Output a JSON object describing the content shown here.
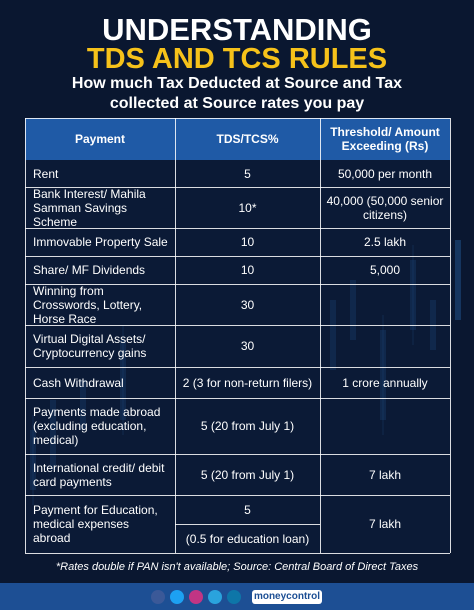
{
  "header": {
    "title": "UNDERSTANDING",
    "title_highlight": "TDS AND TCS RULES",
    "subtitle": "How much Tax Deducted at Source and Tax collected at Source rates you pay"
  },
  "table": {
    "columns": [
      "Payment",
      "TDS/TCS%",
      "Threshold/ Amount Exceeding (Rs)"
    ],
    "rows": [
      {
        "payment": "Rent",
        "rate": [
          "5"
        ],
        "threshold": "50,000 per month"
      },
      {
        "payment": "Bank Interest/ Mahila Samman Savings Scheme",
        "rate": [
          "10*"
        ],
        "threshold": "40,000 (50,000 senior citizens)"
      },
      {
        "payment": "Immovable Property Sale",
        "rate": [
          "10"
        ],
        "threshold": "2.5 lakh"
      },
      {
        "payment": "Share/ MF Dividends",
        "rate": [
          "10"
        ],
        "threshold": "5,000"
      },
      {
        "payment": "Winning from Crosswords, Lottery, Horse Race",
        "rate": [
          "30"
        ]
      },
      {
        "payment": "Virtual Digital Assets/ Cryptocurrency gains",
        "rate": [
          "30"
        ]
      },
      {
        "payment": "Cash Withdrawal",
        "rate": [
          "2 (3 for non-return filers)"
        ],
        "threshold": "1 crore annually"
      },
      {
        "payment": "Payments made abroad (excluding education, medical)",
        "rate": [
          "5 (20 from July 1)"
        ]
      },
      {
        "payment": "International credit/ debit card payments",
        "rate": [
          "5 (20 from July 1)"
        ],
        "threshold": "7 lakh"
      },
      {
        "payment": "Payment for Education, medical expenses abroad",
        "rate": [
          "5",
          "(0.5 for education loan)"
        ],
        "threshold": "7 lakh"
      }
    ]
  },
  "footnote": "*Rates double if PAN isn't available; Source: Central Board of Direct Taxes",
  "footer": {
    "brand": "moneycontrol"
  }
}
